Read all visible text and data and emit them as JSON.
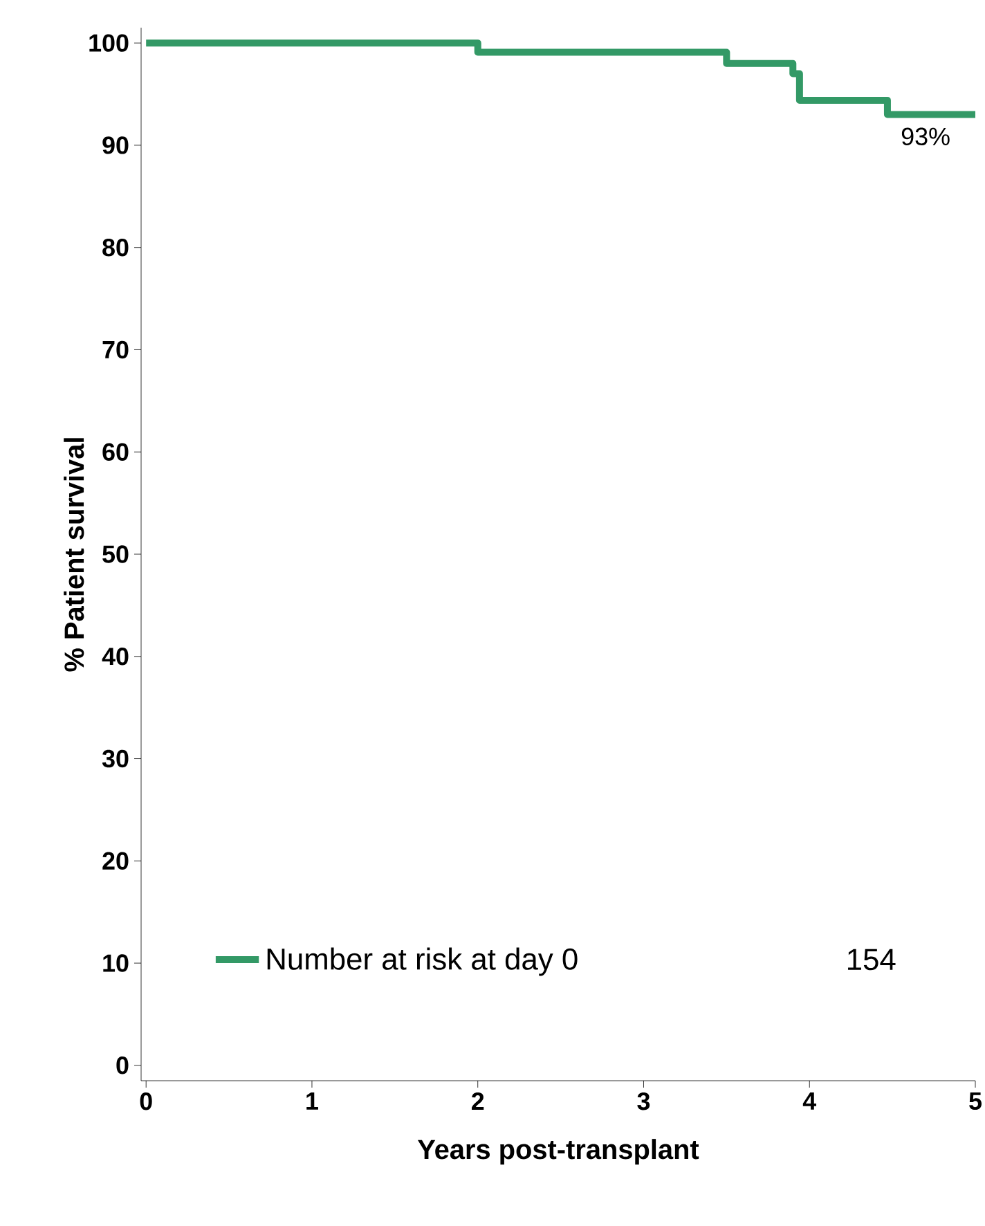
{
  "chart_data": {
    "type": "step",
    "xlabel": "Years post-transplant",
    "ylabel": "% Patient survival",
    "x": [
      0,
      2,
      3.5,
      3.9,
      3.94,
      4.47,
      5
    ],
    "series": [
      {
        "name": "Number at risk at day 0",
        "color": "#339966",
        "values": [
          100,
          99.1,
          98,
          97,
          94.4,
          93,
          93
        ]
      }
    ],
    "xlim": [
      -0.03,
      5
    ],
    "ylim": [
      -1.5,
      101.5
    ],
    "xticks": [
      0,
      1,
      2,
      3,
      4,
      5
    ],
    "yticks": [
      0,
      10,
      20,
      30,
      40,
      50,
      60,
      70,
      80,
      90,
      100
    ],
    "annotations": [
      {
        "text": "93%",
        "x": 4.7,
        "y": 93
      },
      "154"
    ],
    "legend": "bottom left",
    "grid": false,
    "marker": "none"
  }
}
